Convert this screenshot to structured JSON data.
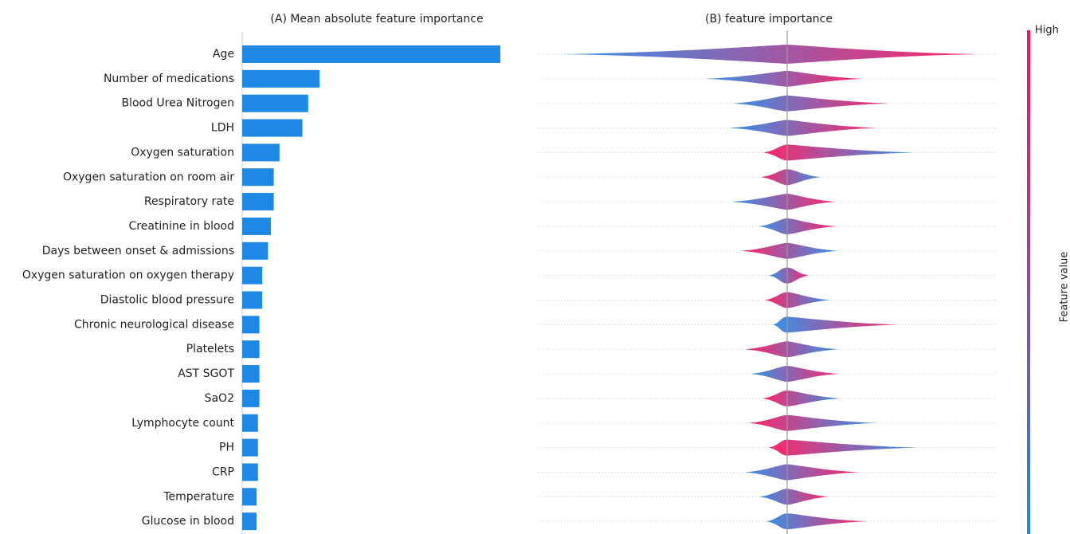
{
  "chart_data": [
    {
      "type": "bar",
      "orientation": "horizontal",
      "title": "(A) Mean absolute feature importance",
      "categories": [
        "Age",
        "Number of medications",
        "Blood Urea Nitrogen",
        "LDH",
        "Oxygen saturation",
        "Oxygen saturation on room air",
        "Respiratory rate",
        "Creatinine in blood",
        "Days between onset & admissions",
        "Oxygen saturation on oxygen therapy",
        "Diastolic blood pressure",
        "Chronic neurological disease",
        "Platelets",
        "AST SGOT",
        "SaO2",
        "Lymphocyte count",
        "PH",
        "CRP",
        "Temperature",
        "Glucose in blood"
      ],
      "values": [
        0.9,
        0.27,
        0.23,
        0.21,
        0.13,
        0.11,
        0.11,
        0.1,
        0.09,
        0.07,
        0.07,
        0.06,
        0.06,
        0.06,
        0.06,
        0.055,
        0.055,
        0.055,
        0.05,
        0.05
      ],
      "color": "#1e88e5",
      "xlim": [
        0,
        1
      ]
    },
    {
      "type": "beeswarm",
      "title": "(B) feature importance",
      "xlim": [
        -3.12,
        2.62
      ],
      "rows": [
        {
          "range": [
            -2.83,
            2.4
          ],
          "colors": [
            "#1e88e5",
            "#ff0d57"
          ]
        },
        {
          "range": [
            -1.03,
            0.94
          ],
          "colors": [
            "#1e88e5",
            "#ff0d57"
          ]
        },
        {
          "range": [
            -0.68,
            1.27
          ],
          "colors": [
            "#1e88e5",
            "#ff0d57"
          ]
        },
        {
          "range": [
            -0.73,
            1.12
          ],
          "colors": [
            "#1e88e5",
            "#ff0d57"
          ]
        },
        {
          "range": [
            -0.3,
            1.6
          ],
          "colors": [
            "#ff0d57",
            "#1e88e5"
          ]
        },
        {
          "range": [
            -0.33,
            0.42
          ],
          "colors": [
            "#ff0d57",
            "#1e88e5"
          ]
        },
        {
          "range": [
            -0.7,
            0.6
          ],
          "colors": [
            "#1e88e5",
            "#ff0d57"
          ]
        },
        {
          "range": [
            -0.36,
            0.62
          ],
          "colors": [
            "#1e88e5",
            "#ff0d57"
          ]
        },
        {
          "range": [
            -0.58,
            0.64
          ],
          "colors": [
            "#ff0d57",
            "#1e88e5"
          ]
        },
        {
          "range": [
            -0.23,
            0.27
          ],
          "colors": [
            "#1e88e5",
            "#ff0d57"
          ]
        },
        {
          "range": [
            -0.28,
            0.54
          ],
          "colors": [
            "#ff0d57",
            "#1e88e5"
          ]
        },
        {
          "range": [
            -0.18,
            1.39
          ],
          "colors": [
            "#1e88e5",
            "#ff0d57"
          ]
        },
        {
          "range": [
            -0.53,
            0.64
          ],
          "colors": [
            "#ff0d57",
            "#1e88e5"
          ]
        },
        {
          "range": [
            -0.46,
            0.65
          ],
          "colors": [
            "#1e88e5",
            "#ff0d57"
          ]
        },
        {
          "range": [
            -0.31,
            0.67
          ],
          "colors": [
            "#ff0d57",
            "#1e88e5"
          ]
        },
        {
          "range": [
            -0.48,
            1.12
          ],
          "colors": [
            "#ff0d57",
            "#1e88e5"
          ]
        },
        {
          "range": [
            -0.23,
            1.64
          ],
          "colors": [
            "#ff0d57",
            "#1e88e5"
          ]
        },
        {
          "range": [
            -0.53,
            0.9
          ],
          "colors": [
            "#1e88e5",
            "#ff0d57"
          ]
        },
        {
          "range": [
            -0.35,
            0.52
          ],
          "colors": [
            "#1e88e5",
            "#ff0d57"
          ]
        },
        {
          "range": [
            -0.26,
            1.0
          ],
          "colors": [
            "#1e88e5",
            "#ff0d57"
          ]
        }
      ],
      "colorbar": {
        "label": "Feature value",
        "high": "High",
        "colors": [
          "#ff0d57",
          "#1e88e5"
        ]
      }
    }
  ]
}
